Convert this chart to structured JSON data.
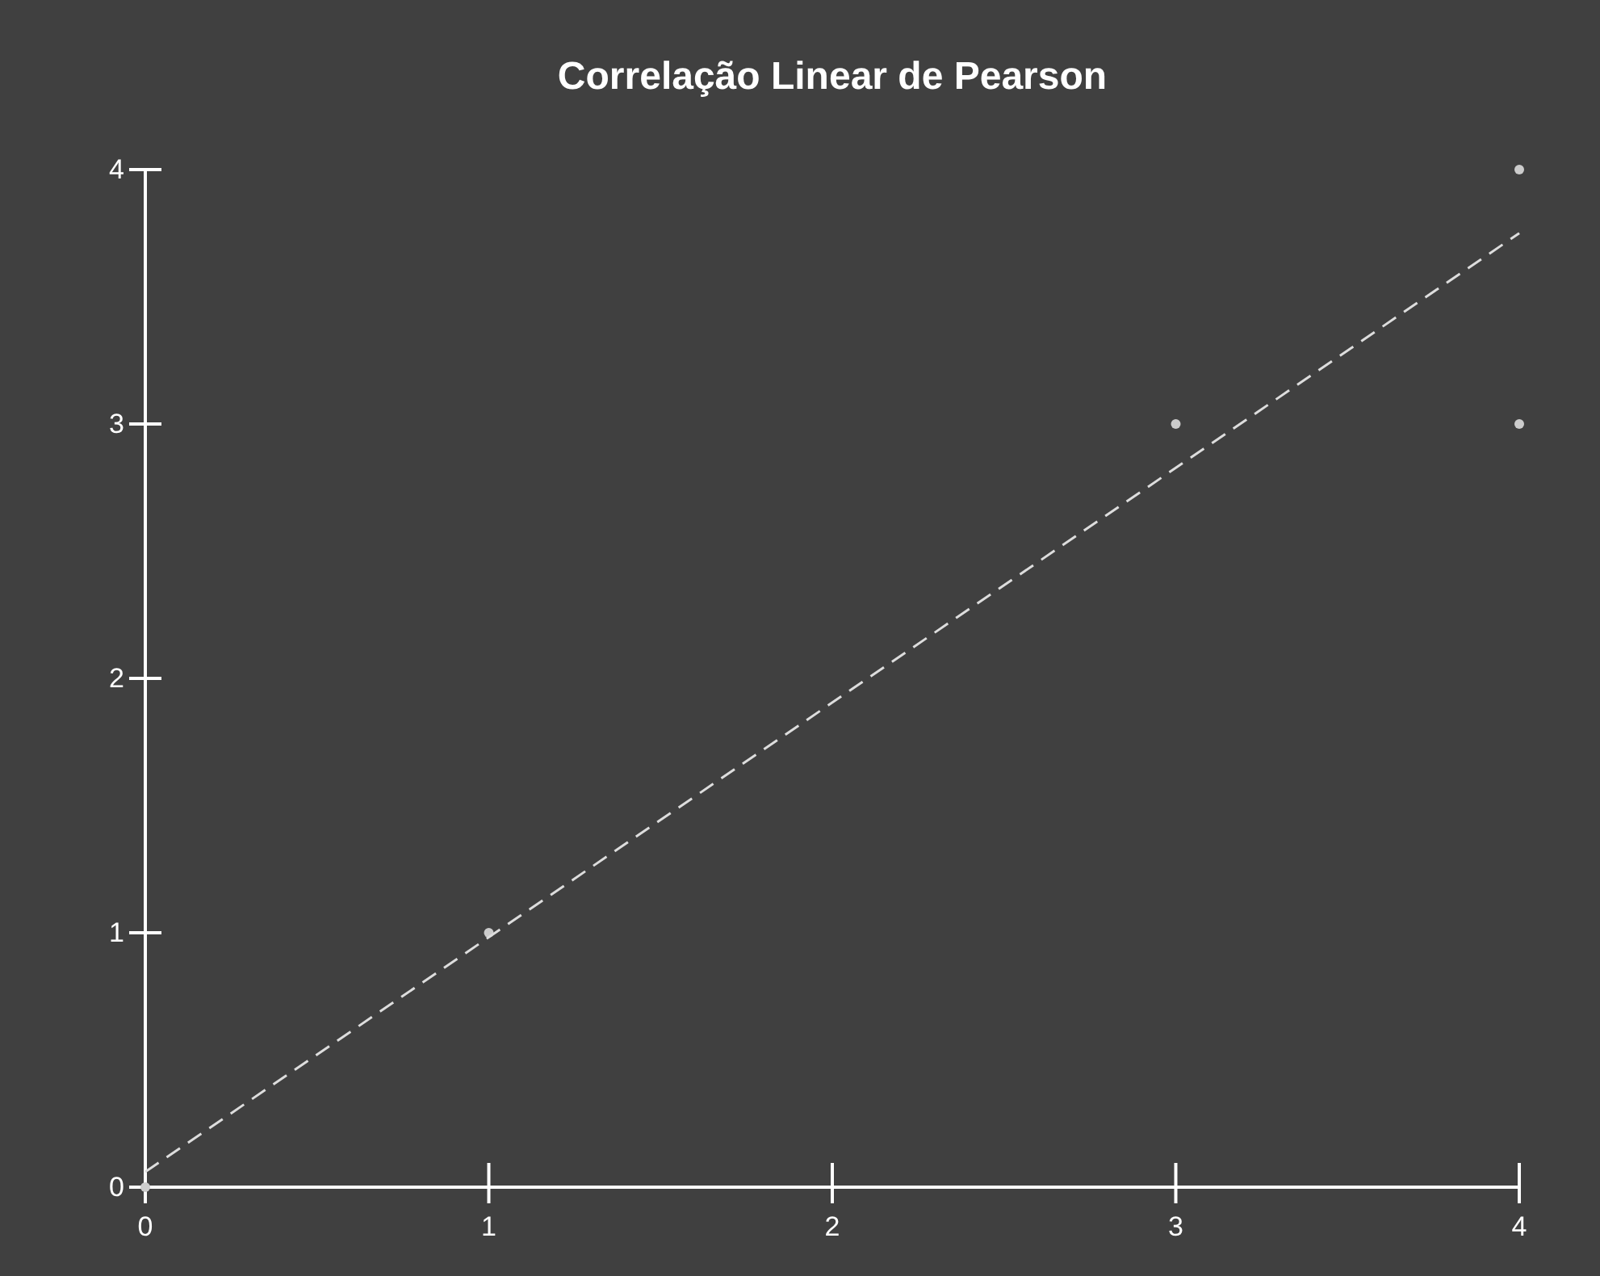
{
  "chart_data": {
    "type": "scatter",
    "title": "Correlação Linear de Pearson",
    "marker": "circle",
    "xlim": [
      0,
      4
    ],
    "ylim": [
      0,
      4
    ],
    "xticks": [
      0,
      1,
      2,
      3,
      4
    ],
    "yticks": [
      0,
      1,
      2,
      3,
      4
    ],
    "series": [
      {
        "color": "#cccccc",
        "x": [
          0,
          1,
          3,
          4,
          4
        ],
        "values": [
          0,
          1,
          3,
          4,
          3
        ]
      },
      {
        "type": "line",
        "marker": "none",
        "color": "#dddddd",
        "line_style": "dashed",
        "x": [
          0,
          4
        ],
        "values": [
          0.06,
          3.75
        ]
      }
    ]
  }
}
